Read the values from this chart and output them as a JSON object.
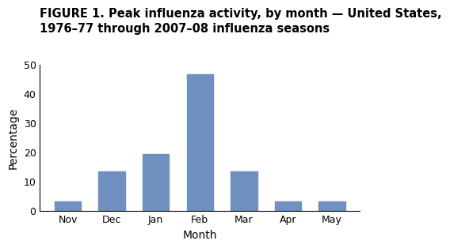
{
  "title_line1": "FIGURE 1. Peak influenza activity, by month — United States,",
  "title_line2": "1976–77 through 2007–08 influenza seasons",
  "categories": [
    "Nov",
    "Dec",
    "Jan",
    "Feb",
    "Mar",
    "Apr",
    "May"
  ],
  "values": [
    3.2,
    13.3,
    19.4,
    46.8,
    13.3,
    3.2,
    3.2
  ],
  "bar_color": "#7090C0",
  "xlabel": "Month",
  "ylabel": "Percentage",
  "ylim": [
    0,
    50
  ],
  "yticks": [
    0,
    10,
    20,
    30,
    40,
    50
  ],
  "background_color": "#ffffff",
  "title_fontsize": 10.5,
  "axis_fontsize": 10,
  "tick_fontsize": 9
}
